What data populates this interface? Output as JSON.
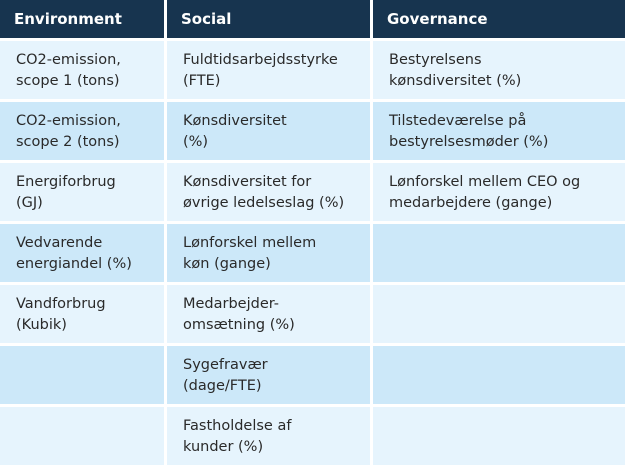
{
  "headers": [
    "Environment",
    "Social",
    "Governance"
  ],
  "rows": [
    [
      "CO2-emission,\nscope 1 (tons)",
      "Fuldtidsarbejdsstyrke\n(FTE)",
      "Bestyrelsens\nkønsdiversitet (%)"
    ],
    [
      "CO2-emission,\nscope 2 (tons)",
      "Kønsdiversitet\n(%)",
      "Tilstedeværelse på\nbestyrelsesmøder (%)"
    ],
    [
      "Energiforbrug\n(GJ)",
      "Kønsdiversitet for\nøvrige ledelseslag (%)",
      "Lønforskel mellem CEO og\nmedarbejdere (gange)"
    ],
    [
      "Vedvarende\nenergiandel (%)",
      "Lønforskel mellem\nkøn (gange)",
      ""
    ],
    [
      "Vandforbrug\n(Kubik)",
      "Medarbejder-\nomsætning (%)",
      ""
    ],
    [
      "",
      "Sygefravær\n (dage/FTE)",
      ""
    ],
    [
      "",
      "Fastholdelse af\nkunder (%)",
      ""
    ]
  ],
  "colors": {
    "header_bg": "#17344f",
    "row_light": "#e6f4fd",
    "row_dark": "#cce8f9"
  }
}
